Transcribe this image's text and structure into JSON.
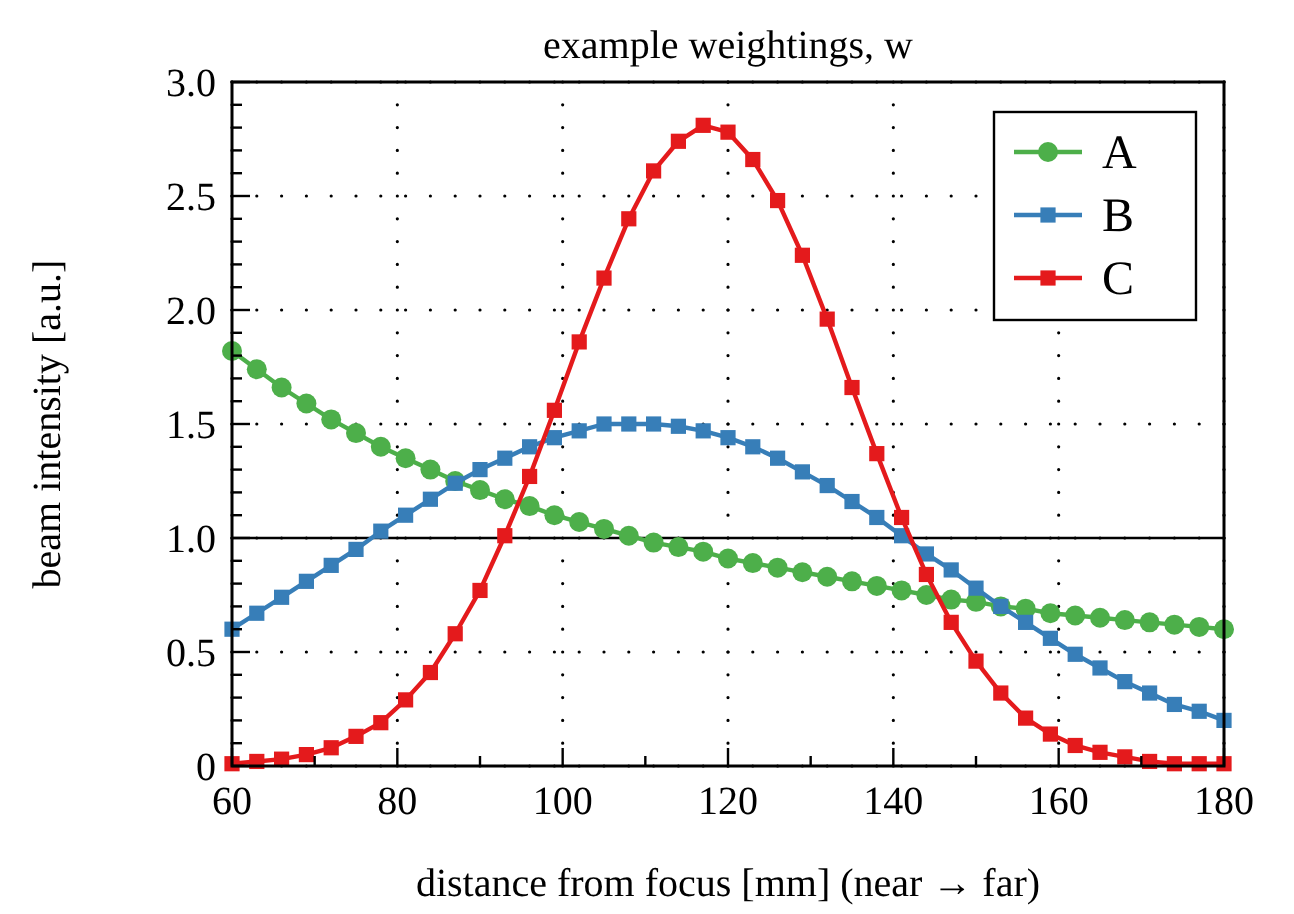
{
  "chart_data": {
    "type": "line",
    "title": "example weightings, w",
    "xlabel": "distance from focus [mm]  (near → far)",
    "ylabel": "beam intensity [a.u.]",
    "x": [
      60,
      63,
      66,
      69,
      72,
      75,
      78,
      81,
      84,
      87,
      90,
      93,
      96,
      99,
      102,
      105,
      108,
      111,
      114,
      117,
      120,
      123,
      126,
      129,
      132,
      135,
      138,
      141,
      144,
      147,
      150,
      153,
      156,
      159,
      162,
      165,
      168,
      171,
      174,
      177,
      180
    ],
    "series": [
      {
        "name": "A",
        "color": "#4daf4a",
        "marker": "circle",
        "values": [
          1.82,
          1.74,
          1.66,
          1.59,
          1.52,
          1.46,
          1.4,
          1.35,
          1.3,
          1.25,
          1.21,
          1.17,
          1.14,
          1.1,
          1.07,
          1.04,
          1.01,
          0.98,
          0.96,
          0.94,
          0.91,
          0.89,
          0.87,
          0.85,
          0.83,
          0.81,
          0.79,
          0.77,
          0.75,
          0.73,
          0.72,
          0.7,
          0.69,
          0.67,
          0.66,
          0.65,
          0.64,
          0.63,
          0.62,
          0.61,
          0.6
        ]
      },
      {
        "name": "B",
        "color": "#377eb8",
        "marker": "square",
        "values": [
          0.6,
          0.67,
          0.74,
          0.81,
          0.88,
          0.95,
          1.03,
          1.1,
          1.17,
          1.24,
          1.3,
          1.35,
          1.4,
          1.44,
          1.47,
          1.5,
          1.5,
          1.5,
          1.49,
          1.47,
          1.44,
          1.4,
          1.35,
          1.29,
          1.23,
          1.16,
          1.09,
          1.01,
          0.93,
          0.86,
          0.78,
          0.7,
          0.63,
          0.56,
          0.49,
          0.43,
          0.37,
          0.32,
          0.27,
          0.24,
          0.2
        ]
      },
      {
        "name": "C",
        "color": "#e41a1c",
        "marker": "square",
        "values": [
          0.01,
          0.02,
          0.03,
          0.05,
          0.08,
          0.13,
          0.19,
          0.29,
          0.41,
          0.58,
          0.77,
          1.01,
          1.27,
          1.56,
          1.86,
          2.14,
          2.4,
          2.61,
          2.74,
          2.81,
          2.78,
          2.66,
          2.48,
          2.24,
          1.96,
          1.66,
          1.37,
          1.09,
          0.84,
          0.63,
          0.46,
          0.32,
          0.21,
          0.14,
          0.09,
          0.06,
          0.04,
          0.02,
          0.01,
          0.01,
          0.01
        ]
      }
    ],
    "xlim": [
      60,
      180
    ],
    "xticks": [
      60,
      {
        "value": 70,
        "label": null
      },
      80,
      {
        "value": 90,
        "label": null
      },
      100,
      {
        "value": 110,
        "label": null
      },
      120,
      {
        "value": 130,
        "label": null
      },
      140,
      {
        "value": 150,
        "label": null
      },
      160,
      {
        "value": 170,
        "label": null
      },
      180
    ],
    "ylim": [
      0,
      3
    ],
    "yticks": [
      {
        "value": 0,
        "label": "0"
      },
      {
        "value": 0.1,
        "label": null
      },
      {
        "value": 0.2,
        "label": null
      },
      {
        "value": 0.3,
        "label": null
      },
      {
        "value": 0.4,
        "label": null
      },
      0.5,
      {
        "value": 0.6,
        "label": null
      },
      {
        "value": 0.7,
        "label": null
      },
      {
        "value": 0.8,
        "label": null
      },
      {
        "value": 0.9,
        "label": null
      },
      {
        "value": 1,
        "label": "1.0"
      },
      {
        "value": 1.1,
        "label": null
      },
      {
        "value": 1.2,
        "label": null
      },
      {
        "value": 1.3,
        "label": null
      },
      {
        "value": 1.4,
        "label": null
      },
      1.5,
      {
        "value": 1.6,
        "label": null
      },
      {
        "value": 1.7,
        "label": null
      },
      {
        "value": 1.8,
        "label": null
      },
      {
        "value": 1.9,
        "label": null
      },
      {
        "value": 2,
        "label": "2.0"
      },
      {
        "value": 2.1,
        "label": null
      },
      {
        "value": 2.2,
        "label": null
      },
      {
        "value": 2.3,
        "label": null
      },
      {
        "value": 2.4,
        "label": null
      },
      2.5,
      {
        "value": 2.6,
        "label": null
      },
      {
        "value": 2.7,
        "label": null
      },
      {
        "value": 2.8,
        "label": null
      },
      {
        "value": 2.9,
        "label": null
      },
      {
        "value": 3,
        "label": "3.0"
      }
    ],
    "ref_lines": [
      {
        "axis": "y",
        "value": 1,
        "color": "#000000",
        "line_style": "solid"
      }
    ],
    "grid": true,
    "legend": "top right",
    "line_style": "solid"
  }
}
